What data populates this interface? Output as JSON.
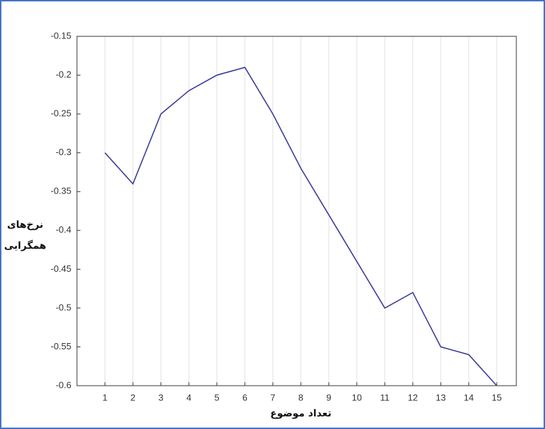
{
  "chart_data": {
    "type": "line",
    "xlabel": "تعداد موضوع",
    "ylabel": [
      "نرخ‌های",
      "همگرایی"
    ],
    "x": [
      1,
      2,
      3,
      4,
      5,
      6,
      7,
      8,
      9,
      10,
      11,
      12,
      13,
      14,
      15
    ],
    "series": [
      {
        "color": "#3b3b9c",
        "values": [
          -0.3,
          -0.34,
          -0.25,
          -0.22,
          -0.2,
          -0.19,
          -0.25,
          -0.32,
          -0.38,
          -0.44,
          -0.5,
          -0.48,
          -0.55,
          -0.56,
          -0.6
        ]
      }
    ],
    "xlim": [
      0,
      15.7
    ],
    "xticks": [
      1,
      2,
      3,
      4,
      5,
      6,
      7,
      8,
      9,
      10,
      11,
      12,
      13,
      14,
      15
    ],
    "ylim": [
      -0.6,
      -0.15
    ],
    "yticks": [
      -0.6,
      -0.55,
      -0.5,
      -0.45,
      -0.4,
      -0.35,
      -0.3,
      -0.25,
      -0.2,
      -0.15
    ],
    "grid": "x"
  }
}
